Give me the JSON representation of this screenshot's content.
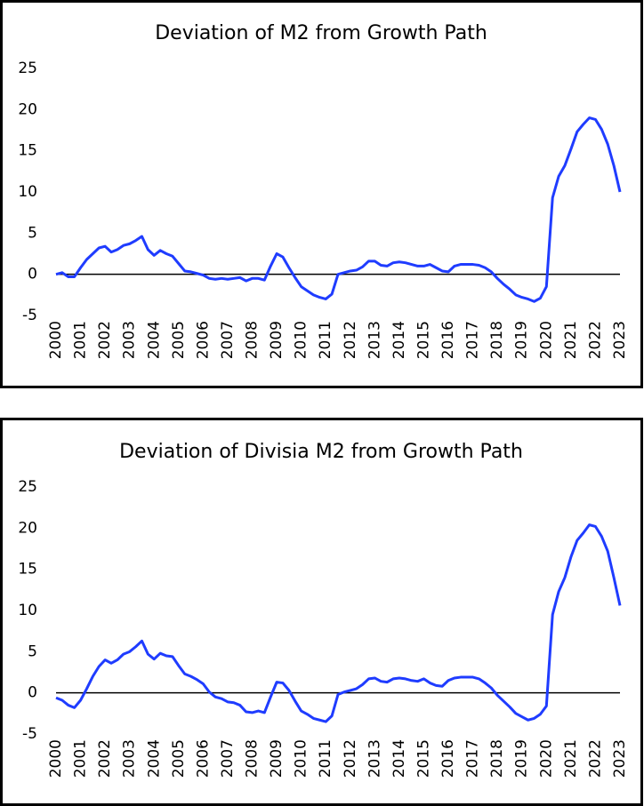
{
  "chart_data": [
    {
      "type": "line",
      "title": "Deviation of M2 from Growth Path",
      "x": [
        2000,
        2000.25,
        2000.5,
        2000.75,
        2001,
        2001.25,
        2001.5,
        2001.75,
        2002,
        2002.25,
        2002.5,
        2002.75,
        2003,
        2003.25,
        2003.5,
        2003.75,
        2004,
        2004.25,
        2004.5,
        2004.75,
        2005,
        2005.25,
        2005.5,
        2005.75,
        2006,
        2006.25,
        2006.5,
        2006.75,
        2007,
        2007.25,
        2007.5,
        2007.75,
        2008,
        2008.25,
        2008.5,
        2008.75,
        2009,
        2009.25,
        2009.5,
        2009.75,
        2010,
        2010.25,
        2010.5,
        2010.75,
        2011,
        2011.25,
        2011.5,
        2011.75,
        2012,
        2012.25,
        2012.5,
        2012.75,
        2013,
        2013.25,
        2013.5,
        2013.75,
        2014,
        2014.25,
        2014.5,
        2014.75,
        2015,
        2015.25,
        2015.5,
        2015.75,
        2016,
        2016.25,
        2016.5,
        2016.75,
        2017,
        2017.25,
        2017.5,
        2017.75,
        2018,
        2018.25,
        2018.5,
        2018.75,
        2019,
        2019.25,
        2019.5,
        2019.75,
        2020,
        2020.25,
        2020.5,
        2020.75,
        2021,
        2021.25,
        2021.5,
        2021.75,
        2022,
        2022.25,
        2022.5,
        2022.75,
        2023
      ],
      "series": [
        {
          "color": "#1f3cff",
          "values": [
            0,
            0.2,
            -0.3,
            -0.3,
            0.8,
            1.8,
            2.5,
            3.2,
            3.4,
            2.7,
            3.0,
            3.5,
            3.7,
            4.1,
            4.6,
            3.0,
            2.3,
            2.9,
            2.5,
            2.2,
            1.3,
            0.4,
            0.3,
            0.1,
            -0.1,
            -0.5,
            -0.6,
            -0.5,
            -0.6,
            -0.5,
            -0.4,
            -0.8,
            -0.5,
            -0.5,
            -0.7,
            1.0,
            2.5,
            2.1,
            0.8,
            -0.4,
            -1.5,
            -2.0,
            -2.5,
            -2.8,
            -3.0,
            -2.4,
            0.0,
            0.2,
            0.4,
            0.5,
            0.9,
            1.6,
            1.6,
            1.1,
            1.0,
            1.4,
            1.5,
            1.4,
            1.2,
            1.0,
            1.0,
            1.2,
            0.8,
            0.4,
            0.3,
            1.0,
            1.2,
            1.2,
            1.2,
            1.1,
            0.8,
            0.3,
            -0.5,
            -1.2,
            -1.8,
            -2.5,
            -2.8,
            -3.0,
            -3.3,
            -2.9,
            -1.5,
            9.3,
            11.9,
            13.2,
            15.2,
            17.3,
            18.2,
            19.0,
            18.8,
            17.6,
            15.8,
            13.2,
            10.0
          ]
        }
      ],
      "xlim": [
        2000,
        2023
      ],
      "xticks": [
        2000,
        2001,
        2002,
        2003,
        2004,
        2005,
        2006,
        2007,
        2008,
        2009,
        2010,
        2011,
        2012,
        2013,
        2014,
        2015,
        2016,
        2017,
        2018,
        2019,
        2020,
        2021,
        2022,
        2023
      ],
      "ylim": [
        -5,
        25
      ],
      "yticks": [
        -5,
        0,
        5,
        10,
        15,
        20,
        25
      ]
    },
    {
      "type": "line",
      "title": "Deviation of Divisia M2 from Growth Path",
      "x": [
        2000,
        2000.25,
        2000.5,
        2000.75,
        2001,
        2001.25,
        2001.5,
        2001.75,
        2002,
        2002.25,
        2002.5,
        2002.75,
        2003,
        2003.25,
        2003.5,
        2003.75,
        2004,
        2004.25,
        2004.5,
        2004.75,
        2005,
        2005.25,
        2005.5,
        2005.75,
        2006,
        2006.25,
        2006.5,
        2006.75,
        2007,
        2007.25,
        2007.5,
        2007.75,
        2008,
        2008.25,
        2008.5,
        2008.75,
        2009,
        2009.25,
        2009.5,
        2009.75,
        2010,
        2010.25,
        2010.5,
        2010.75,
        2011,
        2011.25,
        2011.5,
        2011.75,
        2012,
        2012.25,
        2012.5,
        2012.75,
        2013,
        2013.25,
        2013.5,
        2013.75,
        2014,
        2014.25,
        2014.5,
        2014.75,
        2015,
        2015.25,
        2015.5,
        2015.75,
        2016,
        2016.25,
        2016.5,
        2016.75,
        2017,
        2017.25,
        2017.5,
        2017.75,
        2018,
        2018.25,
        2018.5,
        2018.75,
        2019,
        2019.25,
        2019.5,
        2019.75,
        2020,
        2020.25,
        2020.5,
        2020.75,
        2021,
        2021.25,
        2021.5,
        2021.75,
        2022,
        2022.25,
        2022.5,
        2022.75,
        2023
      ],
      "series": [
        {
          "color": "#1f3cff",
          "values": [
            -0.6,
            -0.9,
            -1.5,
            -1.8,
            -0.9,
            0.5,
            2.0,
            3.2,
            4.0,
            3.6,
            4.0,
            4.7,
            5.0,
            5.6,
            6.3,
            4.7,
            4.1,
            4.8,
            4.5,
            4.4,
            3.3,
            2.3,
            2.0,
            1.6,
            1.1,
            0.1,
            -0.5,
            -0.7,
            -1.1,
            -1.2,
            -1.5,
            -2.3,
            -2.4,
            -2.2,
            -2.4,
            -0.5,
            1.3,
            1.2,
            0.3,
            -1.0,
            -2.2,
            -2.6,
            -3.1,
            -3.3,
            -3.5,
            -2.8,
            -0.2,
            0.1,
            0.3,
            0.5,
            1.0,
            1.7,
            1.8,
            1.4,
            1.3,
            1.7,
            1.8,
            1.7,
            1.5,
            1.4,
            1.7,
            1.2,
            0.9,
            0.8,
            1.5,
            1.8,
            1.9,
            1.9,
            1.9,
            1.7,
            1.2,
            0.6,
            -0.3,
            -1.0,
            -1.7,
            -2.5,
            -2.9,
            -3.3,
            -3.1,
            -2.6,
            -1.6,
            9.5,
            12.3,
            14.0,
            16.5,
            18.5,
            19.4,
            20.4,
            20.2,
            19.0,
            17.2,
            14.0,
            10.6
          ]
        }
      ],
      "xlim": [
        2000,
        2023
      ],
      "xticks": [
        2000,
        2001,
        2002,
        2003,
        2004,
        2005,
        2006,
        2007,
        2008,
        2009,
        2010,
        2011,
        2012,
        2013,
        2014,
        2015,
        2016,
        2017,
        2018,
        2019,
        2020,
        2021,
        2022,
        2023
      ],
      "ylim": [
        -5,
        25
      ],
      "yticks": [
        -5,
        0,
        5,
        10,
        15,
        20,
        25
      ]
    }
  ]
}
